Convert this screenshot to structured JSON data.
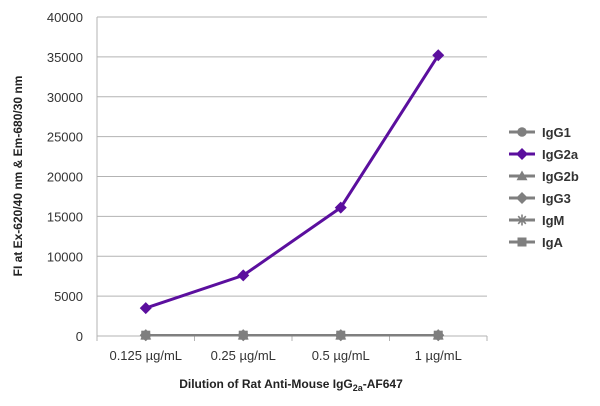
{
  "chart_data": {
    "type": "line",
    "xlabel_parts": [
      "Dilution of Rat Anti-Mouse IgG",
      "2a",
      "-AF647"
    ],
    "ylabel": "FI at Ex-620/40 nm & Em-680/30 nm",
    "categories": [
      "0.125 µg/mL",
      "0.25 µg/mL",
      "0.5 µg/mL",
      "1 µg/mL"
    ],
    "ylim": [
      0,
      40000
    ],
    "yticks": [
      0,
      5000,
      10000,
      15000,
      20000,
      25000,
      30000,
      35000,
      40000
    ],
    "grid": true,
    "legend_position": "right",
    "series": [
      {
        "name": "IgG1",
        "values": [
          100,
          100,
          100,
          100
        ],
        "color": "#7f7f7f",
        "marker": "circle"
      },
      {
        "name": "IgG2a",
        "values": [
          3500,
          7600,
          16100,
          35200
        ],
        "color": "#5b0f9e",
        "marker": "diamond"
      },
      {
        "name": "IgG2b",
        "values": [
          100,
          100,
          100,
          100
        ],
        "color": "#7f7f7f",
        "marker": "triangle"
      },
      {
        "name": "IgG3",
        "values": [
          100,
          100,
          100,
          100
        ],
        "color": "#7f7f7f",
        "marker": "diamond"
      },
      {
        "name": "IgM",
        "values": [
          100,
          100,
          100,
          100
        ],
        "color": "#7f7f7f",
        "marker": "star"
      },
      {
        "name": "IgA",
        "values": [
          100,
          100,
          100,
          100
        ],
        "color": "#7f7f7f",
        "marker": "square"
      }
    ]
  }
}
